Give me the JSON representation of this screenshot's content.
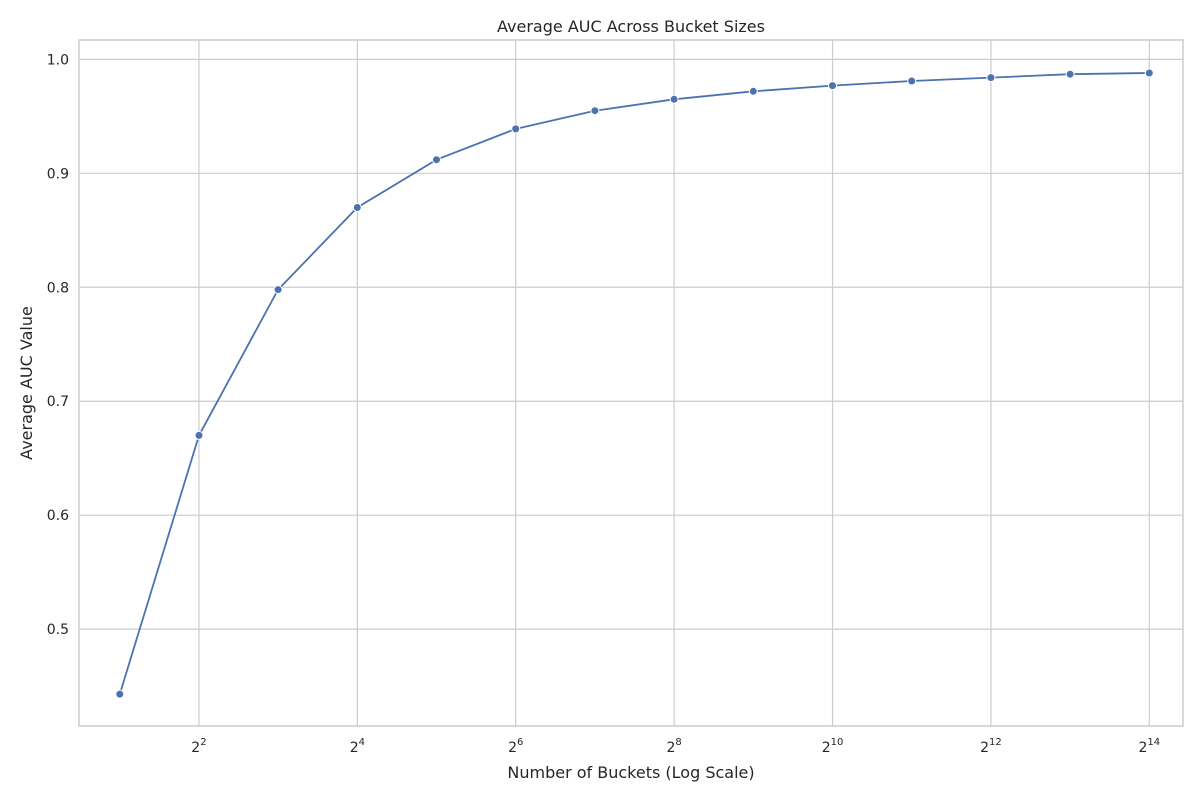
{
  "chart_data": {
    "type": "line",
    "title": "Average AUC Across Bucket Sizes",
    "xlabel": "Number of Buckets (Log Scale)",
    "ylabel": "Average AUC Value",
    "x_scale": "log2",
    "x_tick_base": "2",
    "x_tick_exponents": [
      "2",
      "4",
      "6",
      "8",
      "10",
      "12",
      "14"
    ],
    "y_ticks": [
      "0.5",
      "0.6",
      "0.7",
      "0.8",
      "0.9",
      "1.0"
    ],
    "xlim": [
      1.4,
      22000
    ],
    "ylim": [
      0.415,
      1.017
    ],
    "grid": true,
    "legend": false,
    "color": "#4c72b0",
    "series": [
      {
        "x": [
          2,
          4,
          8,
          16,
          32,
          64,
          128,
          256,
          512,
          1024,
          2048,
          4096,
          8192,
          16384
        ],
        "values": [
          0.443,
          0.67,
          0.798,
          0.87,
          0.912,
          0.939,
          0.955,
          0.965,
          0.972,
          0.977,
          0.981,
          0.984,
          0.987,
          0.988
        ]
      }
    ]
  }
}
